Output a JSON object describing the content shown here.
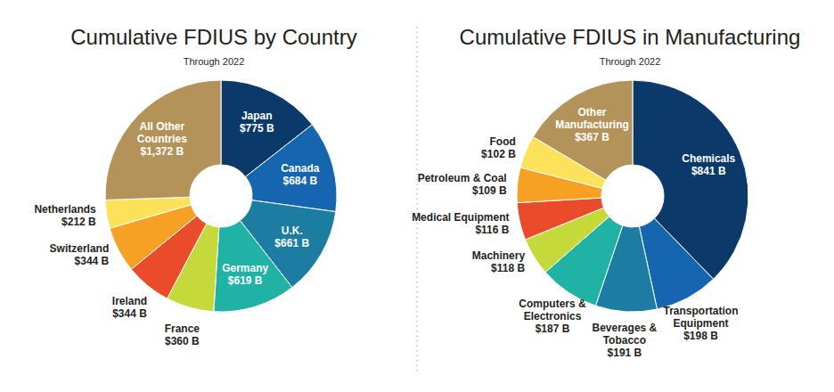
{
  "chart_data": [
    {
      "type": "donut",
      "title": "Cumulative FDIUS by Country",
      "subtitle": "Through 2022",
      "categories": [
        "Japan",
        "Canada",
        "U.K.",
        "Germany",
        "France",
        "Ireland",
        "Switzerland",
        "Netherlands",
        "All Other Countries"
      ],
      "values": [
        775,
        684,
        661,
        619,
        360,
        344,
        344,
        212,
        1372
      ],
      "value_labels": [
        "$775 B",
        "$684 B",
        "$661 B",
        "$619 B",
        "$360 B",
        "$344 B",
        "$344 B",
        "$212 B",
        "$1,372 B"
      ],
      "colors": [
        "#0b3a6a",
        "#1565b0",
        "#1c7ca1",
        "#20b2a5",
        "#c5d93a",
        "#ea4b2b",
        "#f6a123",
        "#fbe25a",
        "#b3935a"
      ],
      "data_labels": true
    },
    {
      "type": "donut",
      "title": "Cumulative FDIUS in Manufacturing",
      "subtitle": "Through 2022",
      "categories": [
        "Chemicals",
        "Transportation Equipment",
        "Beverages & Tobacco",
        "Computers & Electronics",
        "Machinery",
        "Medical Equipment",
        "Petroleum & Coal",
        "Food",
        "Other Manufacturing"
      ],
      "values": [
        841,
        198,
        191,
        187,
        118,
        116,
        109,
        102,
        367
      ],
      "value_labels": [
        "$841 B",
        "$198 B",
        "$191 B",
        "$187 B",
        "$118 B",
        "$116 B",
        "$109 B",
        "$102 B",
        "$367 B"
      ],
      "colors": [
        "#0b3a6a",
        "#1565b0",
        "#1c7ca1",
        "#20b2a5",
        "#c5d93a",
        "#ea4b2b",
        "#f6a123",
        "#fbe25a",
        "#b3935a"
      ],
      "data_labels": true
    }
  ]
}
